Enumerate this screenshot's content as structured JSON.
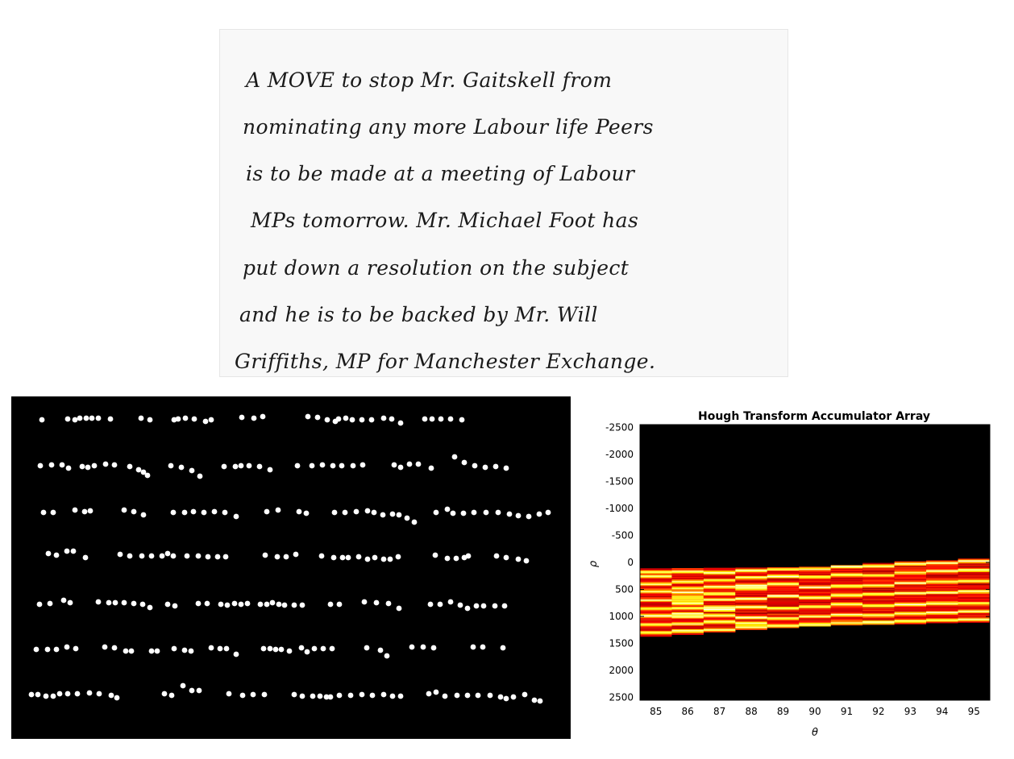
{
  "handwriting": {
    "lines": [
      "A MOVE to stop Mr. Gaitskell from",
      "nominating any more Labour life Peers",
      "is to be made at a meeting of Labour",
      "MPs tomorrow. Mr. Michael Foot has",
      "put down a resolution on the subject",
      "and he is to be backed by Mr. Will",
      "Griffiths, MP for Manchester Exchange."
    ]
  },
  "centroids": {
    "background": "#000000",
    "dot_color": "#ffffff",
    "rows": [
      [
        [
          52,
          521
        ],
        [
          84,
          520
        ],
        [
          93,
          521
        ],
        [
          99,
          519
        ],
        [
          107,
          519
        ],
        [
          114,
          519
        ],
        [
          122,
          519
        ],
        [
          137,
          520
        ],
        [
          175,
          519
        ],
        [
          186,
          521
        ],
        [
          216,
          521
        ],
        [
          221,
          520
        ],
        [
          230,
          519
        ],
        [
          241,
          520
        ],
        [
          255,
          523
        ],
        [
          262,
          521
        ],
        [
          300,
          518
        ],
        [
          315,
          519
        ],
        [
          326,
          517
        ],
        [
          382,
          517
        ],
        [
          394,
          518
        ],
        [
          406,
          521
        ],
        [
          416,
          523
        ],
        [
          420,
          520
        ],
        [
          429,
          519
        ],
        [
          437,
          521
        ],
        [
          449,
          521
        ],
        [
          461,
          521
        ],
        [
          476,
          519
        ],
        [
          486,
          520
        ],
        [
          497,
          525
        ],
        [
          527,
          520
        ],
        [
          536,
          520
        ],
        [
          547,
          520
        ],
        [
          559,
          520
        ],
        [
          573,
          521
        ]
      ],
      [
        [
          50,
          578
        ],
        [
          64,
          577
        ],
        [
          77,
          577
        ],
        [
          85,
          581
        ],
        [
          102,
          579
        ],
        [
          109,
          580
        ],
        [
          117,
          578
        ],
        [
          131,
          576
        ],
        [
          142,
          577
        ],
        [
          161,
          579
        ],
        [
          172,
          583
        ],
        [
          178,
          586
        ],
        [
          183,
          590
        ],
        [
          212,
          578
        ],
        [
          225,
          580
        ],
        [
          238,
          584
        ],
        [
          248,
          591
        ],
        [
          278,
          579
        ],
        [
          292,
          579
        ],
        [
          299,
          578
        ],
        [
          309,
          578
        ],
        [
          322,
          579
        ],
        [
          335,
          583
        ],
        [
          369,
          578
        ],
        [
          387,
          578
        ],
        [
          400,
          577
        ],
        [
          413,
          578
        ],
        [
          424,
          578
        ],
        [
          438,
          578
        ],
        [
          450,
          577
        ],
        [
          489,
          577
        ],
        [
          497,
          580
        ],
        [
          508,
          576
        ],
        [
          519,
          576
        ],
        [
          535,
          581
        ],
        [
          564,
          567
        ],
        [
          576,
          574
        ],
        [
          589,
          578
        ],
        [
          602,
          580
        ],
        [
          615,
          579
        ],
        [
          628,
          581
        ]
      ],
      [
        [
          54,
          636
        ],
        [
          66,
          636
        ],
        [
          93,
          633
        ],
        [
          105,
          635
        ],
        [
          112,
          634
        ],
        [
          154,
          633
        ],
        [
          166,
          635
        ],
        [
          178,
          639
        ],
        [
          215,
          636
        ],
        [
          229,
          636
        ],
        [
          240,
          635
        ],
        [
          253,
          636
        ],
        [
          266,
          635
        ],
        [
          279,
          636
        ],
        [
          293,
          641
        ],
        [
          331,
          635
        ],
        [
          345,
          633
        ],
        [
          371,
          635
        ],
        [
          380,
          637
        ],
        [
          415,
          636
        ],
        [
          428,
          636
        ],
        [
          442,
          635
        ],
        [
          456,
          634
        ],
        [
          464,
          636
        ],
        [
          475,
          639
        ],
        [
          487,
          638
        ],
        [
          495,
          639
        ],
        [
          505,
          643
        ],
        [
          514,
          648
        ],
        [
          541,
          636
        ],
        [
          555,
          632
        ],
        [
          562,
          637
        ],
        [
          575,
          637
        ],
        [
          588,
          636
        ],
        [
          603,
          636
        ],
        [
          618,
          636
        ],
        [
          632,
          638
        ],
        [
          643,
          640
        ],
        [
          656,
          641
        ],
        [
          669,
          638
        ],
        [
          680,
          636
        ]
      ],
      [
        [
          60,
          687
        ],
        [
          70,
          689
        ],
        [
          83,
          684
        ],
        [
          91,
          684
        ],
        [
          106,
          692
        ],
        [
          149,
          688
        ],
        [
          161,
          690
        ],
        [
          176,
          690
        ],
        [
          188,
          690
        ],
        [
          201,
          690
        ],
        [
          208,
          687
        ],
        [
          215,
          690
        ],
        [
          232,
          690
        ],
        [
          246,
          690
        ],
        [
          258,
          691
        ],
        [
          270,
          691
        ],
        [
          280,
          691
        ],
        [
          329,
          689
        ],
        [
          344,
          691
        ],
        [
          355,
          691
        ],
        [
          367,
          688
        ],
        [
          399,
          690
        ],
        [
          414,
          692
        ],
        [
          425,
          692
        ],
        [
          432,
          692
        ],
        [
          445,
          691
        ],
        [
          456,
          694
        ],
        [
          465,
          692
        ],
        [
          476,
          694
        ],
        [
          484,
          694
        ],
        [
          494,
          691
        ],
        [
          540,
          689
        ],
        [
          555,
          693
        ],
        [
          566,
          693
        ],
        [
          576,
          692
        ],
        [
          581,
          690
        ],
        [
          616,
          690
        ],
        [
          628,
          692
        ],
        [
          643,
          694
        ],
        [
          653,
          696
        ]
      ],
      [
        [
          49,
          750
        ],
        [
          62,
          749
        ],
        [
          79,
          745
        ],
        [
          87,
          748
        ],
        [
          122,
          747
        ],
        [
          135,
          748
        ],
        [
          143,
          748
        ],
        [
          154,
          748
        ],
        [
          166,
          749
        ],
        [
          177,
          750
        ],
        [
          186,
          754
        ],
        [
          208,
          750
        ],
        [
          217,
          752
        ],
        [
          246,
          749
        ],
        [
          257,
          749
        ],
        [
          274,
          750
        ],
        [
          282,
          751
        ],
        [
          291,
          749
        ],
        [
          299,
          750
        ],
        [
          307,
          749
        ],
        [
          323,
          750
        ],
        [
          331,
          750
        ],
        [
          338,
          748
        ],
        [
          346,
          750
        ],
        [
          353,
          751
        ],
        [
          365,
          751
        ],
        [
          375,
          751
        ],
        [
          410,
          750
        ],
        [
          421,
          750
        ],
        [
          452,
          747
        ],
        [
          467,
          748
        ],
        [
          482,
          749
        ],
        [
          495,
          755
        ],
        [
          534,
          750
        ],
        [
          546,
          750
        ],
        [
          559,
          747
        ],
        [
          571,
          751
        ],
        [
          580,
          755
        ],
        [
          591,
          752
        ],
        [
          600,
          752
        ],
        [
          614,
          752
        ],
        [
          626,
          752
        ]
      ],
      [
        [
          45,
          806
        ],
        [
          59,
          806
        ],
        [
          70,
          806
        ],
        [
          83,
          803
        ],
        [
          94,
          805
        ],
        [
          130,
          803
        ],
        [
          142,
          804
        ],
        [
          156,
          808
        ],
        [
          163,
          808
        ],
        [
          188,
          808
        ],
        [
          195,
          808
        ],
        [
          216,
          805
        ],
        [
          229,
          807
        ],
        [
          237,
          808
        ],
        [
          262,
          804
        ],
        [
          273,
          805
        ],
        [
          281,
          805
        ],
        [
          293,
          812
        ],
        [
          327,
          805
        ],
        [
          335,
          805
        ],
        [
          342,
          806
        ],
        [
          349,
          806
        ],
        [
          359,
          808
        ],
        [
          374,
          804
        ],
        [
          381,
          809
        ],
        [
          390,
          805
        ],
        [
          401,
          805
        ],
        [
          412,
          805
        ],
        [
          455,
          804
        ],
        [
          472,
          807
        ],
        [
          480,
          814
        ],
        [
          511,
          803
        ],
        [
          525,
          803
        ],
        [
          538,
          804
        ],
        [
          587,
          803
        ],
        [
          599,
          803
        ],
        [
          624,
          804
        ]
      ],
      [
        [
          39,
          862
        ],
        [
          47,
          862
        ],
        [
          57,
          864
        ],
        [
          66,
          864
        ],
        [
          74,
          861
        ],
        [
          84,
          861
        ],
        [
          96,
          861
        ],
        [
          111,
          860
        ],
        [
          123,
          861
        ],
        [
          138,
          863
        ],
        [
          145,
          866
        ],
        [
          204,
          861
        ],
        [
          213,
          863
        ],
        [
          227,
          851
        ],
        [
          238,
          857
        ],
        [
          247,
          857
        ],
        [
          284,
          861
        ],
        [
          301,
          863
        ],
        [
          314,
          862
        ],
        [
          328,
          862
        ],
        [
          365,
          862
        ],
        [
          375,
          864
        ],
        [
          388,
          864
        ],
        [
          397,
          864
        ],
        [
          405,
          865
        ],
        [
          410,
          865
        ],
        [
          421,
          863
        ],
        [
          435,
          863
        ],
        [
          449,
          862
        ],
        [
          462,
          863
        ],
        [
          476,
          862
        ],
        [
          487,
          864
        ],
        [
          497,
          864
        ],
        [
          532,
          861
        ],
        [
          541,
          859
        ],
        [
          552,
          864
        ],
        [
          567,
          863
        ],
        [
          580,
          863
        ],
        [
          593,
          863
        ],
        [
          608,
          863
        ],
        [
          621,
          865
        ],
        [
          628,
          867
        ],
        [
          637,
          865
        ],
        [
          651,
          862
        ],
        [
          663,
          869
        ],
        [
          670,
          870
        ]
      ]
    ]
  },
  "chart_data": {
    "type": "heatmap",
    "title": "Hough Transform Accumulator Array",
    "xlabel": "θ",
    "ylabel": "ρ",
    "xlim": [
      84.5,
      95.5
    ],
    "ylim": [
      -2550,
      2550
    ],
    "y_reversed": true,
    "x_ticks": [
      85,
      86,
      87,
      88,
      89,
      90,
      91,
      92,
      93,
      94,
      95
    ],
    "y_ticks": [
      -2500,
      -2000,
      -1500,
      -1000,
      -500,
      0,
      500,
      1000,
      1500,
      2000,
      2500
    ],
    "colormap": "hot",
    "background_color": "#000000",
    "columns": [
      {
        "theta": 85,
        "rho_min": 110,
        "rho_max": 1370
      },
      {
        "theta": 86,
        "rho_min": 105,
        "rho_max": 1330
      },
      {
        "theta": 87,
        "rho_min": 100,
        "rho_max": 1290
      },
      {
        "theta": 88,
        "rho_min": 95,
        "rho_max": 1240
      },
      {
        "theta": 89,
        "rho_min": 90,
        "rho_max": 1210
      },
      {
        "theta": 90,
        "rho_min": 80,
        "rho_max": 1180
      },
      {
        "theta": 91,
        "rho_min": 50,
        "rho_max": 1160
      },
      {
        "theta": 92,
        "rho_min": 10,
        "rho_max": 1150
      },
      {
        "theta": 93,
        "rho_min": -20,
        "rho_max": 1140
      },
      {
        "theta": 94,
        "rho_min": -40,
        "rho_max": 1120
      },
      {
        "theta": 95,
        "rho_min": -70,
        "rho_max": 1110
      }
    ],
    "text_line_rho": [
      [
        180,
        260,
        400,
        540,
        700,
        860,
        990,
        1150,
        1300
      ],
      [
        170,
        360,
        480,
        560,
        640,
        700,
        760,
        850,
        950,
        1010,
        1140,
        1270
      ],
      [
        190,
        330,
        450,
        580,
        690,
        830,
        880,
        980,
        1100,
        1250
      ],
      [
        150,
        280,
        430,
        480,
        670,
        830,
        1020,
        1130,
        1200
      ],
      [
        130,
        260,
        400,
        620,
        850,
        1040,
        1170
      ],
      [
        120,
        270,
        460,
        650,
        820,
        1000,
        1150
      ],
      [
        80,
        230,
        440,
        610,
        780,
        970,
        1120
      ],
      [
        70,
        240,
        430,
        590,
        800,
        980,
        1110
      ],
      [
        30,
        190,
        380,
        570,
        780,
        950,
        1090
      ],
      [
        10,
        160,
        360,
        560,
        760,
        930,
        1070
      ],
      [
        -20,
        140,
        350,
        540,
        760,
        910,
        1060
      ]
    ]
  }
}
